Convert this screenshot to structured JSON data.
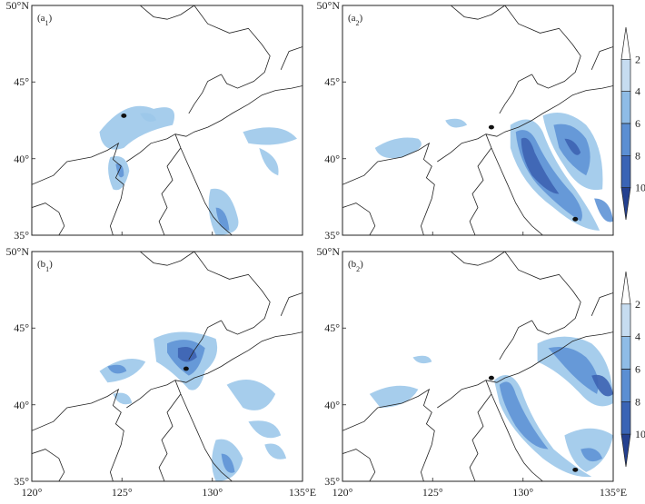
{
  "panels": [
    {
      "id": "a1",
      "label": "(a",
      "sub": "1",
      "show_lat_labels": true,
      "show_lon_labels": false
    },
    {
      "id": "a2",
      "label": "(a",
      "sub": "2",
      "show_lat_labels": true,
      "show_lon_labels": false
    },
    {
      "id": "b1",
      "label": "(b",
      "sub": "1",
      "show_lat_labels": true,
      "show_lon_labels": true
    },
    {
      "id": "b2",
      "label": "(b",
      "sub": "2",
      "show_lat_labels": true,
      "show_lon_labels": true
    }
  ],
  "lat_labels": [
    "35°",
    "40°",
    "45°",
    "50°N"
  ],
  "lon_labels": [
    "120°",
    "125°",
    "130°",
    "135°E"
  ],
  "colorbar": {
    "ticks": [
      "2",
      "4",
      "6",
      "8",
      "10"
    ],
    "colors": [
      "#ffffff",
      "#c6dcf0",
      "#8fbce6",
      "#5b8fd3",
      "#3a64b5",
      "#24408f"
    ]
  },
  "map_colors": {
    "land_line": "#222222",
    "shade_light": "#9cc8ea",
    "shade_mid": "#5f94d6",
    "shade_dark": "#3d63b3"
  }
}
